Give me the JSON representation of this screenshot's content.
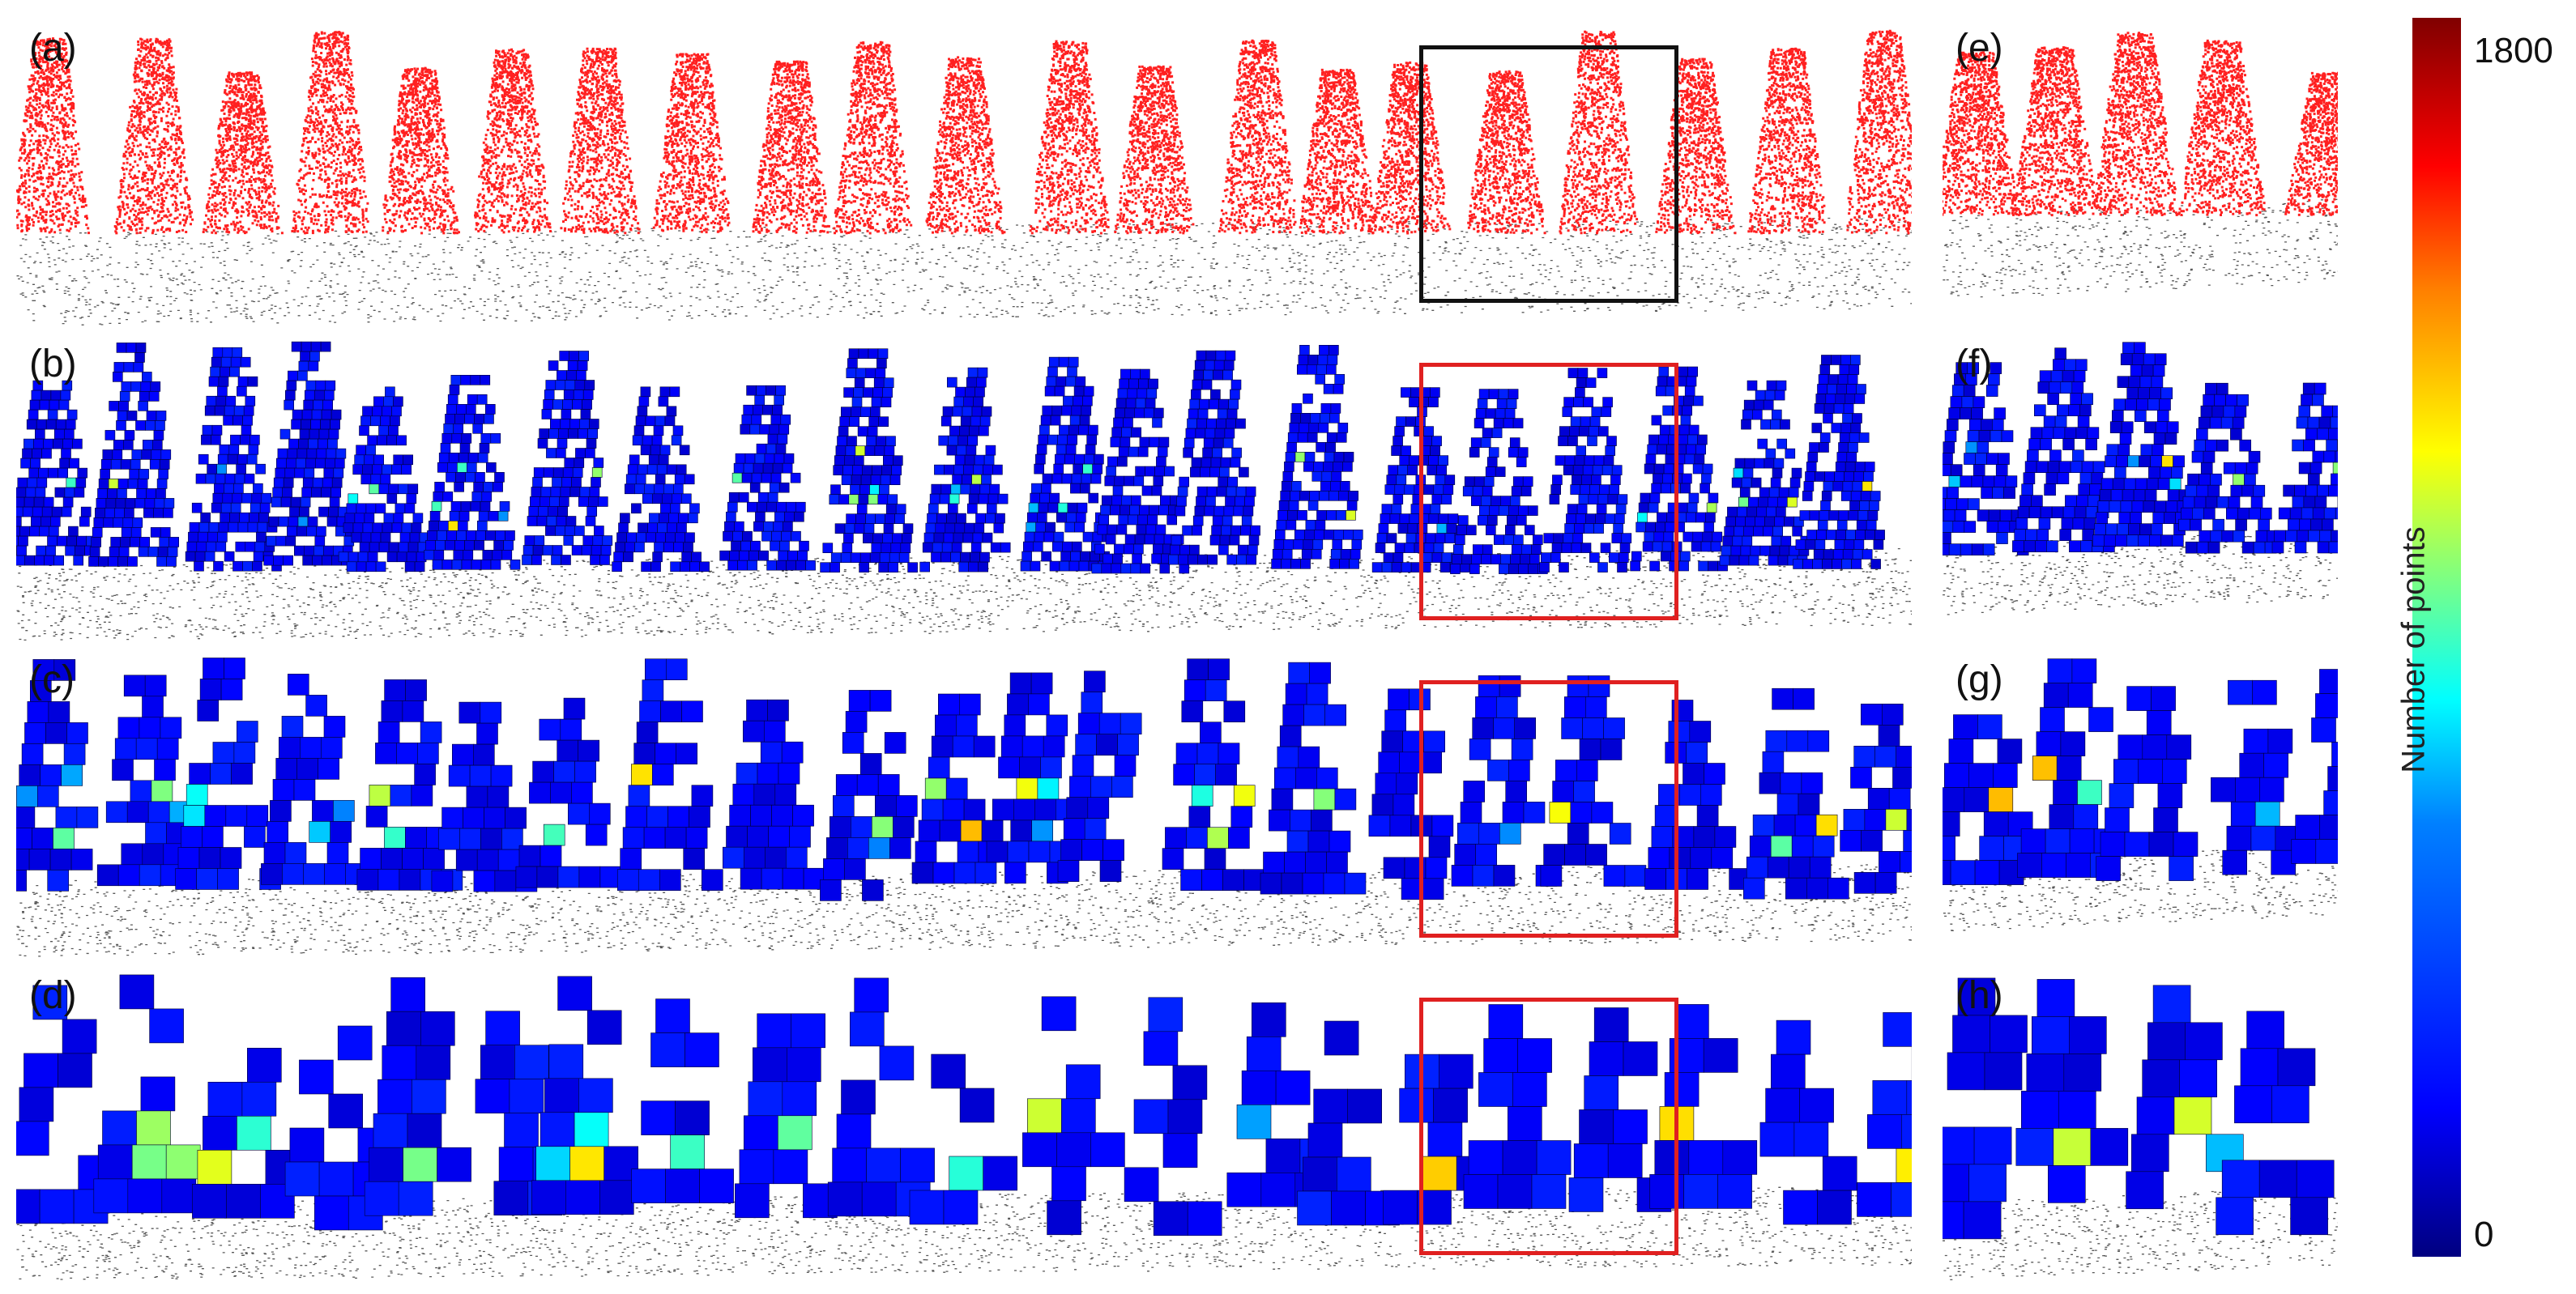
{
  "panels": [
    {
      "id": "a",
      "label": "(a)",
      "style": "points",
      "box": "black"
    },
    {
      "id": "b",
      "label": "(b)",
      "style": "voxel-small",
      "box": "red"
    },
    {
      "id": "c",
      "label": "(c)",
      "style": "voxel-medium",
      "box": "red"
    },
    {
      "id": "d",
      "label": "(d)",
      "style": "voxel-large",
      "box": "red"
    },
    {
      "id": "e",
      "label": "(e)",
      "style": "points"
    },
    {
      "id": "f",
      "label": "(f)",
      "style": "voxel-small"
    },
    {
      "id": "g",
      "label": "(g)",
      "style": "voxel-medium"
    },
    {
      "id": "h",
      "label": "(h)",
      "style": "voxel-large"
    }
  ],
  "colors": {
    "points": "#ff2020",
    "ground": "#222222",
    "voxel_base": "#0a14b4",
    "box_black": "#111111",
    "box_red": "#e02020"
  },
  "colorbar": {
    "title": "Number of points",
    "max_label": "1800",
    "min_label": "0",
    "colormap": "jet"
  }
}
